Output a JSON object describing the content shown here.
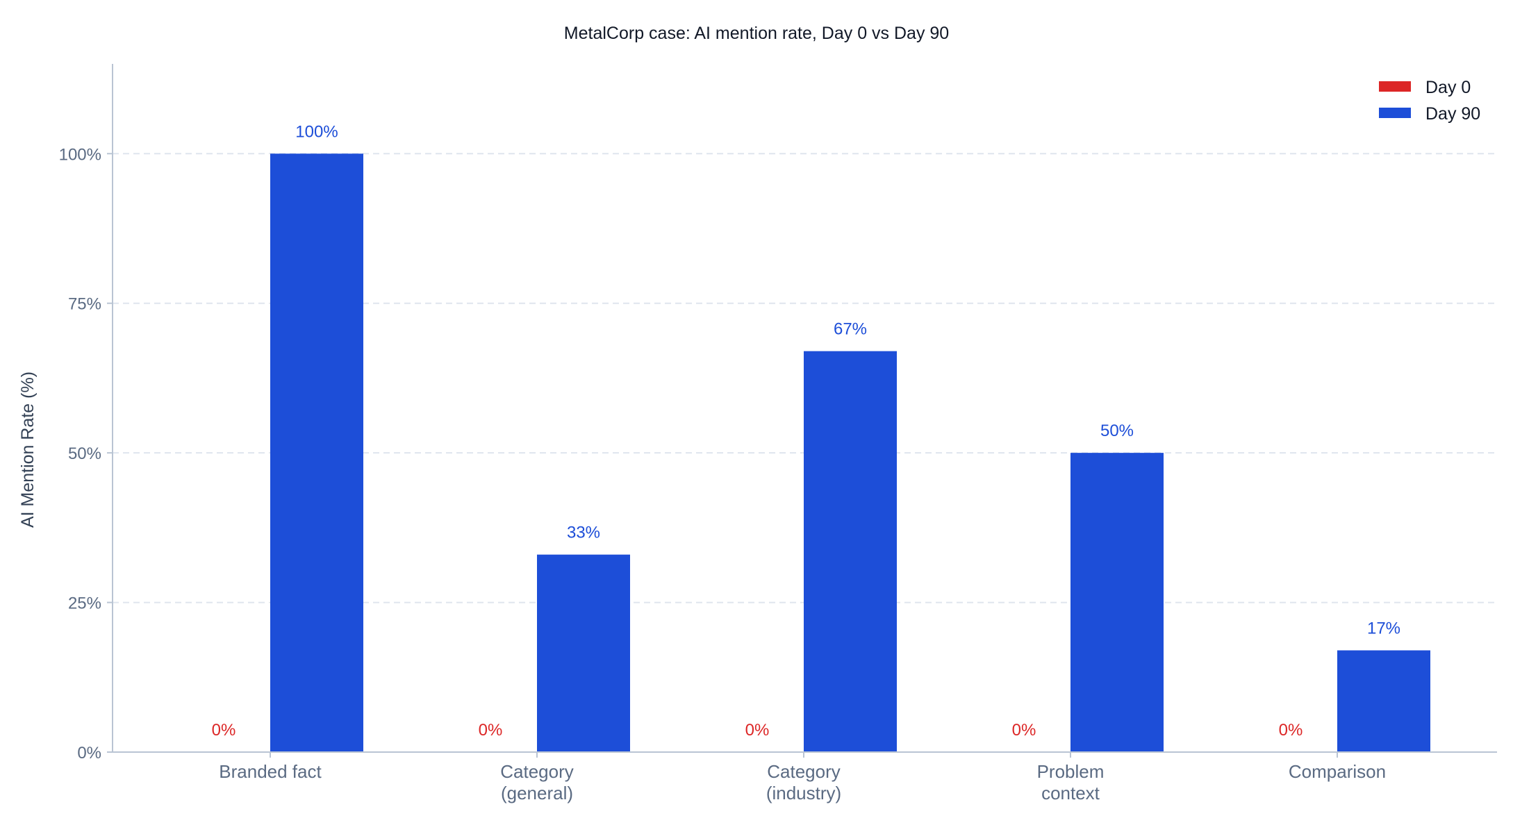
{
  "chart_data": {
    "type": "bar",
    "title": "MetalCorp case: AI mention rate, Day 0 vs Day 90",
    "ylabel": "AI Mention Rate (%)",
    "xlabel": "",
    "categories": [
      [
        "Branded fact"
      ],
      [
        "Category",
        "(general)"
      ],
      [
        "Category",
        "(industry)"
      ],
      [
        "Problem",
        "context"
      ],
      [
        "Comparison"
      ]
    ],
    "series": [
      {
        "name": "Day 0",
        "color": "#dc2626",
        "values": [
          0,
          0,
          0,
          0,
          0
        ],
        "labels": [
          "0%",
          "0%",
          "0%",
          "0%",
          "0%"
        ]
      },
      {
        "name": "Day 90",
        "color": "#1d4ed8",
        "values": [
          100,
          33,
          67,
          50,
          17
        ],
        "labels": [
          "100%",
          "33%",
          "67%",
          "50%",
          "17%"
        ]
      }
    ],
    "ylim": [
      0,
      115
    ],
    "yticks": [
      0,
      25,
      50,
      75,
      100
    ],
    "ytick_labels": [
      "0%",
      "25%",
      "50%",
      "75%",
      "100%"
    ],
    "grid": true,
    "legend_position": "top-right"
  }
}
